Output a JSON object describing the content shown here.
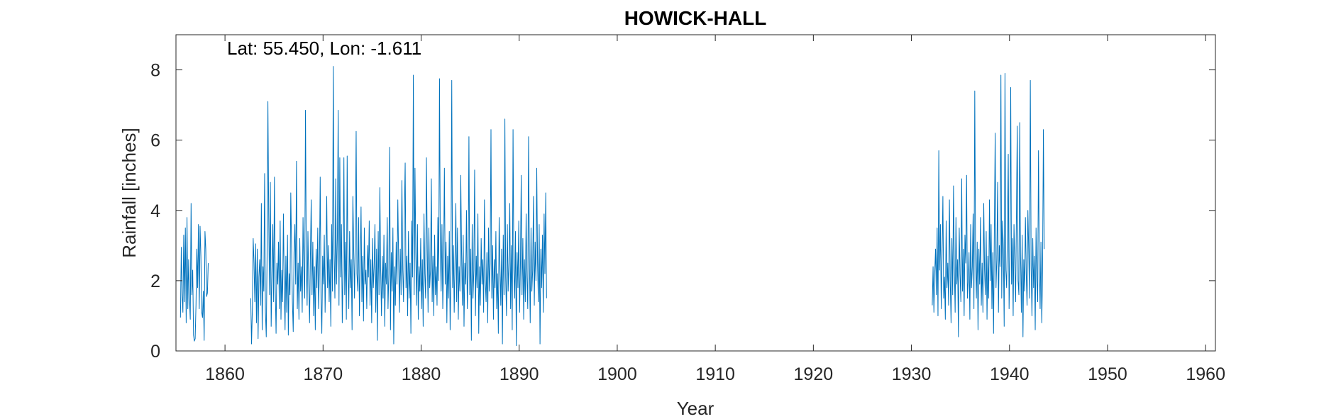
{
  "chart_data": {
    "type": "line",
    "title": "HOWICK-HALL",
    "xlabel": "Year",
    "ylabel": "Rainfall [inches]",
    "annotation": "Lat: 55.450, Lon: -1.611",
    "xlim": [
      1855,
      1961
    ],
    "ylim": [
      0,
      9
    ],
    "xticks": [
      1860,
      1870,
      1880,
      1890,
      1900,
      1910,
      1920,
      1930,
      1940,
      1950,
      1960
    ],
    "yticks": [
      0,
      2,
      4,
      6,
      8
    ],
    "grid": false,
    "line_color": "#0072BD",
    "series": [
      {
        "sampling": "monthly",
        "segments": [
          {
            "start": "1855-06",
            "values": [
              0.95,
              2.95,
              1.6,
              1.1,
              3.3,
              1.4,
              3.5,
              0.8,
              3.8,
              1.2,
              2.6,
              1.5,
              0.9,
              4.2,
              1.6,
              2.3,
              0.45,
              0.28,
              0.35,
              1.3,
              2.9,
              1.8,
              3.6,
              1.2,
              3.55,
              2.7,
              1.1,
              0.95,
              1.7,
              0.3,
              3.4,
              2.9,
              1.55,
              1.65,
              2.5
            ]
          },
          {
            "start": "1862-08",
            "values": [
              1.5,
              0.2,
              1.2,
              3.2,
              2.5,
              1.4,
              3.05,
              0.8,
              2.9,
              0.35,
              2.1,
              2.6,
              1.3,
              4.2,
              0.6,
              2.4,
              1.7,
              5.05,
              1.1,
              0.4,
              2.7,
              7.1,
              3.9,
              1.6,
              4.8,
              0.7,
              2.2,
              3.6,
              1.4,
              4.95,
              1.8,
              0.5,
              2.5,
              1.9,
              3.1,
              1.2,
              3.7,
              0.9,
              2.3,
              1.4,
              3.9,
              1.8,
              0.6,
              2.7,
              1.1,
              3.3,
              0.45,
              2.2,
              1.6,
              4.5,
              2.9,
              1.4,
              0.55,
              2.8,
              3.6,
              1.9,
              5.4,
              1.2,
              2.5,
              0.9,
              3.2,
              1.7,
              2.4,
              1.1,
              3.8,
              2.3,
              1.5,
              6.85,
              2.6,
              1.3,
              3.4,
              1.9,
              0.8,
              2.7,
              4.3,
              1.6,
              3.1,
              1.0,
              2.4,
              0.6,
              2.9,
              1.8,
              3.5,
              1.2,
              2.2,
              4.95,
              1.5,
              0.5,
              2.7,
              1.9,
              3.3,
              1.1,
              2.5,
              4.4,
              1.8,
              3.0,
              1.4,
              2.6,
              0.7,
              3.6,
              1.7,
              8.1,
              2.8,
              1.5,
              4.9,
              1.9,
              3.2,
              6.85,
              1.3,
              5.5,
              2.1,
              3.6,
              0.8,
              2.4,
              5.5,
              1.6,
              3.1,
              0.9,
              5.55,
              2.3,
              1.2,
              3.4,
              1.8,
              2.6,
              0.6,
              4.4,
              2.9,
              1.5,
              3.3,
              6.25,
              2.2,
              1.7,
              3.8,
              1.0,
              2.5,
              4.1,
              1.4,
              2.7,
              0.85,
              3.5,
              1.9,
              2.3,
              1.2,
              3.0,
              2.1,
              3.7,
              1.3,
              2.6,
              0.8,
              3.2,
              1.8,
              2.4,
              3.6,
              1.1,
              2.9,
              0.3,
              3.4,
              1.6,
              4.65,
              2.3,
              1.0,
              2.7,
              1.5,
              3.3,
              0.7,
              2.5,
              1.9,
              3.8,
              1.2,
              2.2,
              5.8,
              0.6,
              2.8,
              1.7,
              3.5,
              0.2,
              2.4,
              1.3,
              3.1,
              1.9,
              4.3,
              2.6,
              1.1,
              2.9,
              1.6,
              4.85,
              2.3,
              1.4,
              3.9,
              5.35,
              1.8,
              2.7,
              1.0,
              3.4,
              1.5,
              2.5,
              0.5,
              3.7,
              2.1,
              7.85,
              1.6,
              5.2,
              2.8,
              1.3,
              3.6,
              0.9,
              2.4,
              1.7,
              3.2,
              1.2,
              2.6,
              0.7,
              3.9,
              2.2,
              1.5,
              5.5,
              2.9,
              1.1,
              3.5,
              1.8,
              2.3,
              4.9,
              1.4,
              2.7,
              1.0,
              3.3,
              1.6,
              2.4,
              1.3,
              3.8,
              2.0,
              7.75,
              2.9,
              1.7,
              3.6,
              1.2,
              2.5,
              5.2,
              1.9,
              3.1,
              0.8,
              2.7,
              1.5,
              3.4,
              0.6,
              2.2,
              7.7,
              1.8,
              3.0,
              1.1,
              2.6,
              4.2,
              1.4,
              3.5,
              0.9,
              2.4,
              1.7,
              5.0,
              2.8,
              1.3,
              3.3,
              0.7,
              2.5,
              1.9,
              4.0,
              1.2,
              2.2,
              6.1,
              1.6,
              2.9,
              0.3,
              3.6,
              1.5,
              2.3,
              5.15,
              1.0,
              2.7,
              1.8,
              3.9,
              0.5,
              2.4,
              1.3,
              3.2,
              1.9,
              2.6,
              1.1,
              4.3,
              2.0,
              1.4,
              2.8,
              0.8,
              3.5,
              1.7,
              2.5,
              6.3,
              1.5,
              3.0,
              0.9,
              2.6,
              1.8,
              3.4,
              1.2,
              2.2,
              0.5,
              3.8,
              2.4,
              1.3,
              2.9,
              0.2,
              3.3,
              1.6,
              6.6,
              2.1,
              1.0,
              3.6,
              1.7,
              2.5,
              4.2,
              1.2,
              3.0,
              0.6,
              6.3,
              2.3,
              1.5,
              3.4,
              0.15,
              2.8,
              1.8,
              3.7,
              1.1,
              2.4,
              5.0,
              1.6,
              3.2,
              0.9,
              2.6,
              1.4,
              3.9,
              2.1,
              1.2,
              6.1,
              2.7,
              0.8,
              3.5,
              1.7,
              2.3,
              4.4,
              1.3,
              3.1,
              2.0,
              5.2,
              2.5,
              1.4,
              3.6,
              0.2,
              2.9,
              1.8,
              3.3,
              1.1,
              3.9,
              2.2,
              4.5,
              1.5
            ]
          },
          {
            "start": "1932-02",
            "values": [
              1.3,
              2.4,
              1.1,
              2.2,
              2.9,
              1.6,
              3.5,
              1.0,
              5.7,
              2.3,
              3.6,
              1.2,
              2.7,
              4.4,
              1.5,
              2.1,
              0.9,
              3.7,
              1.8,
              2.5,
              1.3,
              4.3,
              2.0,
              0.8,
              3.2,
              1.6,
              4.7,
              2.4,
              1.1,
              3.8,
              1.9,
              2.6,
              0.4,
              3.5,
              2.2,
              1.4,
              4.9,
              1.7,
              2.9,
              1.0,
              3.3,
              2.5,
              5.0,
              1.5,
              2.0,
              2.8,
              0.9,
              3.6,
              1.8,
              2.4,
              3.9,
              1.2,
              7.4,
              2.6,
              1.5,
              3.1,
              0.6,
              2.9,
              1.9,
              3.8,
              1.3,
              2.5,
              1.1,
              4.2,
              2.3,
              1.6,
              3.4,
              0.9,
              2.7,
              1.5,
              4.3,
              2.0,
              3.6,
              1.2,
              2.8,
              0.5,
              3.5,
              6.2,
              1.8,
              2.6,
              4.8,
              1.1,
              3.0,
              2.4,
              7.85,
              1.5,
              3.7,
              2.9,
              0.7,
              7.9,
              2.3,
              1.8,
              3.4,
              5.6,
              1.2,
              2.7,
              7.5,
              1.9,
              3.2,
              1.0,
              3.6,
              2.5,
              1.4,
              3.9,
              6.4,
              2.0,
              1.6,
              6.5,
              2.8,
              1.1,
              3.3,
              0.4,
              2.6,
              1.7,
              3.8,
              2.2,
              1.3,
              4.0,
              2.9,
              1.5,
              7.7,
              2.4,
              1.0,
              3.2,
              1.8,
              2.7,
              0.6,
              3.5,
              2.0,
              1.4,
              5.7,
              2.5,
              1.2,
              3.1,
              0.8,
              2.3,
              6.3,
              2.9
            ]
          }
        ]
      }
    ]
  }
}
